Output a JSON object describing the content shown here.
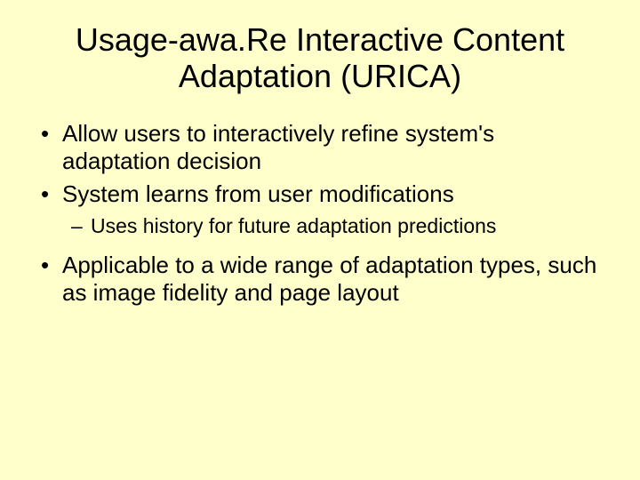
{
  "slide": {
    "title": "Usage-awa.Re Interactive Content Adaptation (URICA)",
    "background_color": "#ffffcc",
    "text_color": "#000000",
    "title_fontsize": 36,
    "body_fontsize": 26,
    "sub_fontsize": 23,
    "bullets": [
      {
        "level": 1,
        "text": "Allow users to interactively refine system's adaptation decision"
      },
      {
        "level": 1,
        "text": "System learns from user modifications"
      },
      {
        "level": 2,
        "text": "Uses history for future adaptation predictions"
      },
      {
        "level": 1,
        "text": "Applicable to a wide range of adaptation types, such as image fidelity and page layout"
      }
    ]
  }
}
